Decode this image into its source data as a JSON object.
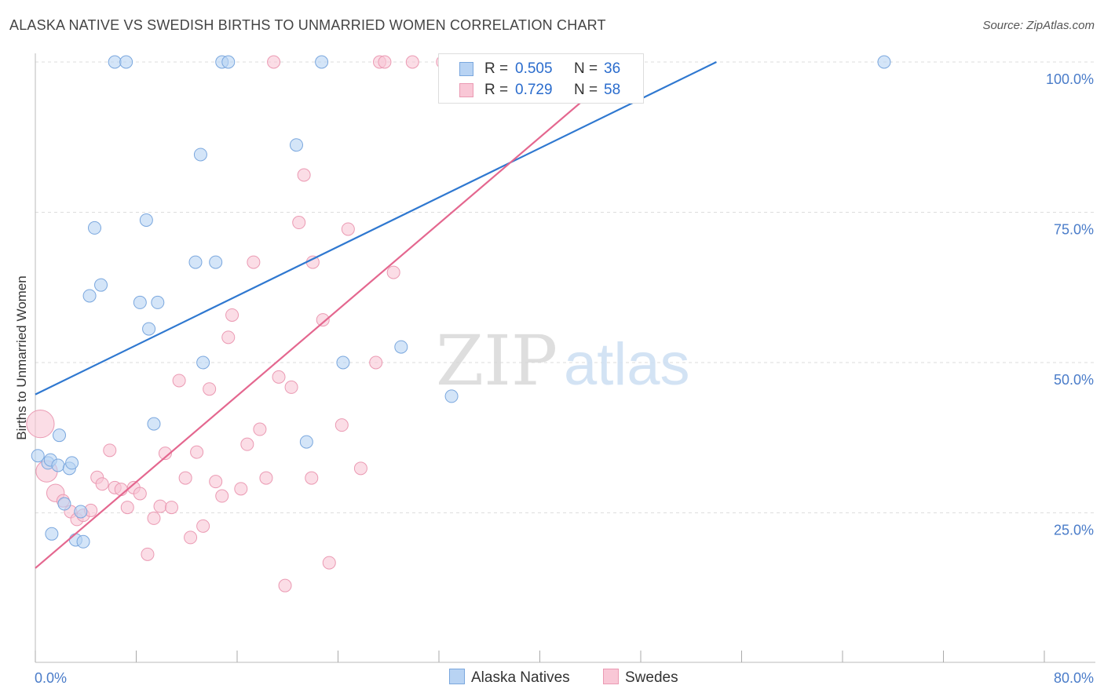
{
  "header": {
    "title": "ALASKA NATIVE VS SWEDISH BIRTHS TO UNMARRIED WOMEN CORRELATION CHART",
    "source": "Source: ZipAtlas.com"
  },
  "watermark": {
    "zip": "ZIP",
    "atlas": "atlas"
  },
  "legend": {
    "rows": [
      {
        "r_label": "R =",
        "r_value": "0.505",
        "n_label": "N =",
        "n_value": "36"
      },
      {
        "r_label": "R =",
        "r_value": "0.729",
        "n_label": "N =",
        "n_value": "58"
      }
    ],
    "bottom": [
      "Alaska Natives",
      "Swedes"
    ]
  },
  "colors": {
    "blue_fill": "#b8d3f3",
    "blue_stroke": "#7aa7de",
    "blue_line": "#2f78d0",
    "pink_fill": "#f9c7d6",
    "pink_stroke": "#eb9ab3",
    "pink_line": "#e4678f",
    "tick_text": "#4a7cc9",
    "grid": "#dddddd"
  },
  "chart_data": {
    "type": "scatter",
    "title": "ALASKA NATIVE VS SWEDISH BIRTHS TO UNMARRIED WOMEN CORRELATION CHART",
    "xlabel": "",
    "ylabel": "Births to Unmarried Women",
    "xlim": [
      0,
      80
    ],
    "ylim": [
      0,
      100
    ],
    "x_tick_labels": [
      "0.0%",
      "80.0%"
    ],
    "y_tick_labels": [
      "25.0%",
      "50.0%",
      "75.0%",
      "100.0%"
    ],
    "y_ticks": [
      25,
      50,
      75,
      100
    ],
    "grid": true,
    "series": [
      {
        "name": "Alaska Natives",
        "r": 0.505,
        "n": 36,
        "trend": {
          "x": [
            0,
            54
          ],
          "y": [
            44.7,
            100
          ]
        },
        "points": [
          {
            "x": 0.2,
            "y": 34.5,
            "s": 1
          },
          {
            "x": 1.0,
            "y": 33.3,
            "s": 1
          },
          {
            "x": 1.2,
            "y": 33.8,
            "s": 1
          },
          {
            "x": 1.3,
            "y": 21.5,
            "s": 1
          },
          {
            "x": 1.9,
            "y": 37.9,
            "s": 1
          },
          {
            "x": 1.8,
            "y": 32.9,
            "s": 1
          },
          {
            "x": 2.3,
            "y": 26.5,
            "s": 1
          },
          {
            "x": 2.7,
            "y": 32.4,
            "s": 1
          },
          {
            "x": 2.9,
            "y": 33.3,
            "s": 1
          },
          {
            "x": 3.2,
            "y": 20.5,
            "s": 1
          },
          {
            "x": 3.6,
            "y": 25.2,
            "s": 1
          },
          {
            "x": 3.8,
            "y": 20.2,
            "s": 1
          },
          {
            "x": 4.3,
            "y": 61.1,
            "s": 1
          },
          {
            "x": 4.7,
            "y": 72.4,
            "s": 1
          },
          {
            "x": 5.2,
            "y": 62.9,
            "s": 1
          },
          {
            "x": 6.3,
            "y": 100,
            "s": 1
          },
          {
            "x": 7.2,
            "y": 100,
            "s": 1
          },
          {
            "x": 8.3,
            "y": 60.0,
            "s": 1
          },
          {
            "x": 8.8,
            "y": 73.7,
            "s": 1
          },
          {
            "x": 9.0,
            "y": 55.6,
            "s": 1
          },
          {
            "x": 9.4,
            "y": 39.8,
            "s": 1
          },
          {
            "x": 9.7,
            "y": 60.0,
            "s": 1
          },
          {
            "x": 12.7,
            "y": 66.7,
            "s": 1
          },
          {
            "x": 13.1,
            "y": 84.6,
            "s": 1
          },
          {
            "x": 13.3,
            "y": 50.0,
            "s": 1
          },
          {
            "x": 14.3,
            "y": 66.7,
            "s": 1
          },
          {
            "x": 14.8,
            "y": 100,
            "s": 1
          },
          {
            "x": 15.3,
            "y": 100,
            "s": 1
          },
          {
            "x": 20.7,
            "y": 86.2,
            "s": 1
          },
          {
            "x": 21.5,
            "y": 36.8,
            "s": 1
          },
          {
            "x": 22.7,
            "y": 100,
            "s": 1
          },
          {
            "x": 24.4,
            "y": 50.0,
            "s": 1
          },
          {
            "x": 29.0,
            "y": 52.6,
            "s": 1
          },
          {
            "x": 33.0,
            "y": 44.4,
            "s": 1
          },
          {
            "x": 67.3,
            "y": 100,
            "s": 1
          },
          {
            "x": 38.5,
            "y": 100,
            "s": 1
          }
        ]
      },
      {
        "name": "Swedes",
        "r": 0.729,
        "n": 58,
        "trend": {
          "x": [
            0,
            47
          ],
          "y": [
            15.8,
            100
          ]
        },
        "points": [
          {
            "x": 0.4,
            "y": 39.8,
            "s": 2.2
          },
          {
            "x": 0.9,
            "y": 31.9,
            "s": 1.7
          },
          {
            "x": 1.6,
            "y": 28.3,
            "s": 1.4
          },
          {
            "x": 2.2,
            "y": 27.0,
            "s": 1
          },
          {
            "x": 2.8,
            "y": 25.2,
            "s": 1
          },
          {
            "x": 3.3,
            "y": 23.9,
            "s": 1
          },
          {
            "x": 3.8,
            "y": 24.6,
            "s": 1
          },
          {
            "x": 4.4,
            "y": 25.4,
            "s": 1
          },
          {
            "x": 4.9,
            "y": 30.9,
            "s": 1
          },
          {
            "x": 5.3,
            "y": 29.8,
            "s": 1
          },
          {
            "x": 5.9,
            "y": 35.4,
            "s": 1
          },
          {
            "x": 6.3,
            "y": 29.2,
            "s": 1
          },
          {
            "x": 6.8,
            "y": 28.9,
            "s": 1
          },
          {
            "x": 7.3,
            "y": 25.9,
            "s": 1
          },
          {
            "x": 7.8,
            "y": 29.2,
            "s": 1
          },
          {
            "x": 8.3,
            "y": 28.2,
            "s": 1
          },
          {
            "x": 8.9,
            "y": 18.1,
            "s": 1
          },
          {
            "x": 9.4,
            "y": 24.1,
            "s": 1
          },
          {
            "x": 9.9,
            "y": 26.1,
            "s": 1
          },
          {
            "x": 10.3,
            "y": 34.9,
            "s": 1
          },
          {
            "x": 10.8,
            "y": 25.9,
            "s": 1
          },
          {
            "x": 11.4,
            "y": 47.0,
            "s": 1
          },
          {
            "x": 11.9,
            "y": 30.8,
            "s": 1
          },
          {
            "x": 12.3,
            "y": 20.9,
            "s": 1
          },
          {
            "x": 12.8,
            "y": 35.1,
            "s": 1
          },
          {
            "x": 13.3,
            "y": 22.8,
            "s": 1
          },
          {
            "x": 13.8,
            "y": 45.6,
            "s": 1
          },
          {
            "x": 14.3,
            "y": 30.2,
            "s": 1
          },
          {
            "x": 14.8,
            "y": 27.8,
            "s": 1
          },
          {
            "x": 15.3,
            "y": 54.2,
            "s": 1
          },
          {
            "x": 15.6,
            "y": 57.9,
            "s": 1
          },
          {
            "x": 16.3,
            "y": 29.0,
            "s": 1
          },
          {
            "x": 16.8,
            "y": 36.4,
            "s": 1
          },
          {
            "x": 17.3,
            "y": 66.7,
            "s": 1
          },
          {
            "x": 17.8,
            "y": 38.9,
            "s": 1
          },
          {
            "x": 18.3,
            "y": 30.8,
            "s": 1
          },
          {
            "x": 18.9,
            "y": 100,
            "s": 1
          },
          {
            "x": 19.3,
            "y": 47.6,
            "s": 1
          },
          {
            "x": 19.8,
            "y": 12.9,
            "s": 1
          },
          {
            "x": 20.3,
            "y": 45.9,
            "s": 1
          },
          {
            "x": 20.9,
            "y": 73.3,
            "s": 1
          },
          {
            "x": 21.3,
            "y": 81.2,
            "s": 1
          },
          {
            "x": 21.9,
            "y": 30.8,
            "s": 1
          },
          {
            "x": 22.0,
            "y": 66.7,
            "s": 1
          },
          {
            "x": 22.8,
            "y": 57.1,
            "s": 1
          },
          {
            "x": 23.3,
            "y": 16.7,
            "s": 1
          },
          {
            "x": 24.3,
            "y": 39.6,
            "s": 1
          },
          {
            "x": 24.8,
            "y": 72.2,
            "s": 1
          },
          {
            "x": 25.8,
            "y": 32.4,
            "s": 1
          },
          {
            "x": 27.0,
            "y": 50.0,
            "s": 1
          },
          {
            "x": 27.3,
            "y": 100,
            "s": 1
          },
          {
            "x": 27.7,
            "y": 100,
            "s": 1
          },
          {
            "x": 28.4,
            "y": 65.0,
            "s": 1
          },
          {
            "x": 29.9,
            "y": 100,
            "s": 1
          },
          {
            "x": 32.3,
            "y": 100,
            "s": 1
          },
          {
            "x": 35.4,
            "y": 100,
            "s": 1
          },
          {
            "x": 37.3,
            "y": 100,
            "s": 1
          },
          {
            "x": 45.3,
            "y": 100,
            "s": 1
          }
        ]
      }
    ]
  }
}
